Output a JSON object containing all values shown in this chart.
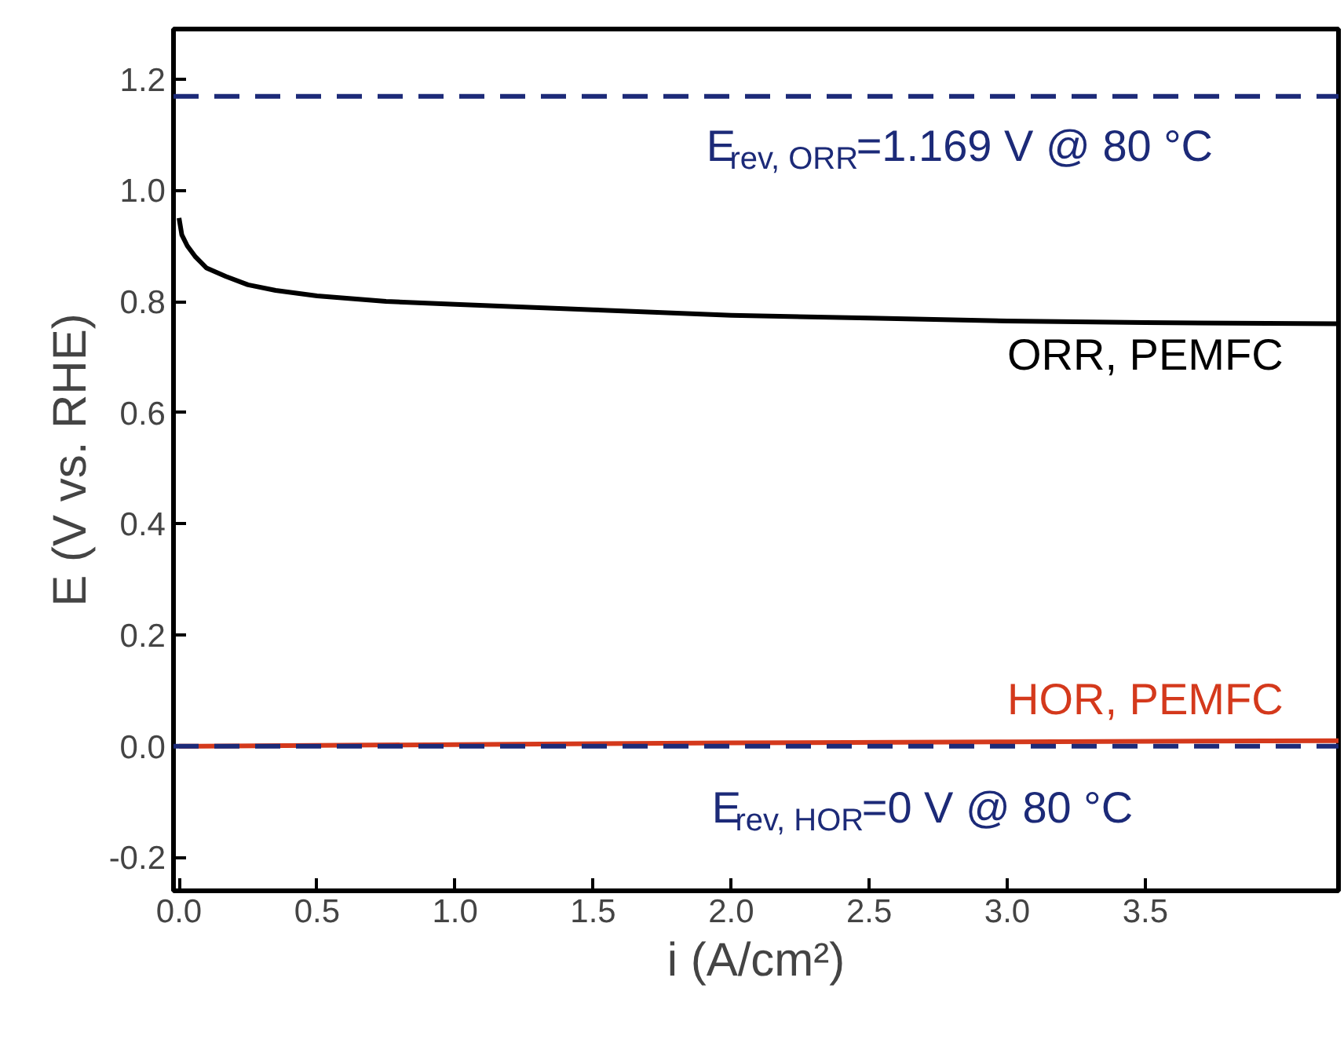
{
  "chart_data": {
    "type": "line",
    "xlabel": "i (A/cm²)",
    "ylabel": "E (V vs. RHE)",
    "xlim": [
      -0.02,
      4.2
    ],
    "ylim": [
      -0.26,
      1.29
    ],
    "xticks": [
      {
        "value": 0,
        "label": "0.0"
      },
      {
        "value": 0.5,
        "label": "0.5"
      },
      {
        "value": 1,
        "label": "1.0"
      },
      {
        "value": 1.5,
        "label": "1.5"
      },
      {
        "value": 2,
        "label": "2.0"
      },
      {
        "value": 2.5,
        "label": "2.5"
      },
      {
        "value": 3,
        "label": "3.0"
      },
      {
        "value": 3.5,
        "label": "3.5"
      }
    ],
    "yticks": [
      {
        "value": -0.2,
        "label": "-0.2"
      },
      {
        "value": 0,
        "label": "0.0"
      },
      {
        "value": 0.2,
        "label": "0.2"
      },
      {
        "value": 0.4,
        "label": "0.4"
      },
      {
        "value": 0.6,
        "label": "0.6"
      },
      {
        "value": 0.8,
        "label": "0.8"
      },
      {
        "value": 1,
        "label": "1.0"
      },
      {
        "value": 1.2,
        "label": "1.2"
      }
    ],
    "series": [
      {
        "name": "ORR, PEMFC",
        "color": "#000000",
        "x": [
          0,
          0.01,
          0.03,
          0.06,
          0.1,
          0.17,
          0.25,
          0.35,
          0.5,
          0.75,
          1,
          1.5,
          2,
          2.5,
          3,
          3.5,
          4.2
        ],
        "values": [
          0.95,
          0.92,
          0.9,
          0.88,
          0.86,
          0.845,
          0.83,
          0.82,
          0.81,
          0.8,
          0.795,
          0.785,
          0.775,
          0.77,
          0.765,
          0.762,
          0.76
        ]
      },
      {
        "name": "HOR, PEMFC",
        "color": "#d4391c",
        "x": [
          0,
          1,
          2,
          3,
          4.2
        ],
        "values": [
          0,
          0.003,
          0.006,
          0.008,
          0.01
        ]
      }
    ],
    "ref_lines": [
      {
        "axis": "y",
        "value": 1.169,
        "label": "E$_{rev, ORR}$=1.169 V @ 80 °C",
        "color": "#1c2a78",
        "line_style": "dashed"
      },
      {
        "axis": "y",
        "value": 0,
        "label": "E$_{rev, HOR}$=0 V @ 80 °C",
        "color": "#1c2a78",
        "line_style": "dashed"
      }
    ],
    "grid": false,
    "line_style": "solid",
    "marker": "none"
  }
}
